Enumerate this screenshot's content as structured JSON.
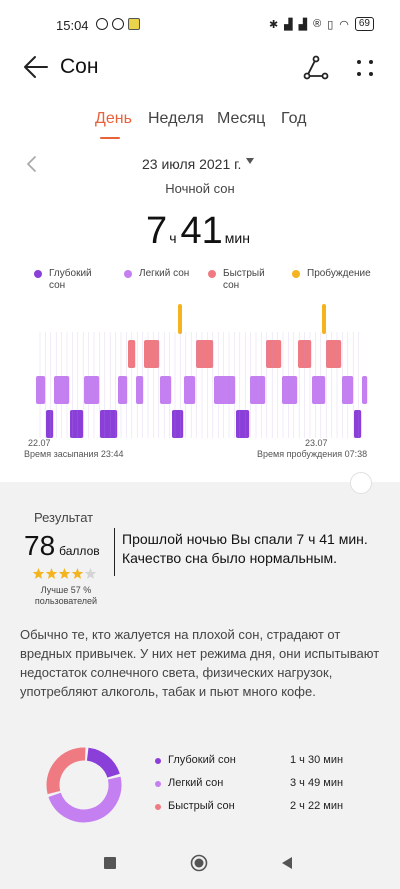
{
  "status_bar": {
    "time": "15:04",
    "battery": "69",
    "icons": [
      "whatsapp-icon",
      "messenger-icon",
      "file-icon",
      "bluetooth-icon",
      "signal-icon",
      "signal-icon",
      "registered-icon",
      "vibrate-icon",
      "wifi-icon"
    ]
  },
  "app_bar": {
    "title": "Сон"
  },
  "tabs": [
    {
      "label": "День",
      "active": true
    },
    {
      "label": "Неделя"
    },
    {
      "label": "Месяц"
    },
    {
      "label": "Год"
    }
  ],
  "date": {
    "label": "23 июля 2021 г."
  },
  "sleep_type": "Ночной сон",
  "total": {
    "hours": "7",
    "hours_unit": "ч",
    "minutes": "41",
    "minutes_unit": "мин"
  },
  "legend": [
    {
      "label": "Глубокий сон",
      "color": "#8b3fd9"
    },
    {
      "label": "Легкий сон",
      "color": "#c47ff0"
    },
    {
      "label": "Быстрый сон",
      "color": "#f07a82"
    },
    {
      "label": "Пробуждение",
      "color": "#f4b41f"
    }
  ],
  "chart_labels": {
    "start_date": "22.07",
    "start_text": "Время засыпания 23:44",
    "end_date": "23.07",
    "end_text": "Время пробуждения 07:38"
  },
  "result": {
    "title": "Результат",
    "score": "78",
    "score_unit": "баллов",
    "stars": 4,
    "stars_max": 5,
    "rank": "Лучше 57 % пользователей",
    "summary": "Прошлой ночью Вы спали 7 ч 41 мин. Качество сна было нормальным."
  },
  "advice": "Обычно те, кто жалуется на плохой сон, страдают от вредных привычек. У них нет режима дня, они испытывают недостаток солнечного света, физических нагрузок, употребляют алкоголь, табак и пьют много кофе.",
  "stats": [
    {
      "name": "Глубокий сон",
      "value": "1 ч 30 мин",
      "minutes": 90,
      "color": "#8b3fd9"
    },
    {
      "name": "Легкий сон",
      "value": "3 ч 49 мин",
      "minutes": 229,
      "color": "#c47ff0"
    },
    {
      "name": "Быстрый сон",
      "value": "2 ч 22 мин",
      "minutes": 142,
      "color": "#f07a82"
    }
  ],
  "colors": {
    "accent": "#e8623a",
    "deep": "#8b3fd9",
    "light": "#c47ff0",
    "rem": "#f07a82",
    "awake": "#f4b41f"
  }
}
